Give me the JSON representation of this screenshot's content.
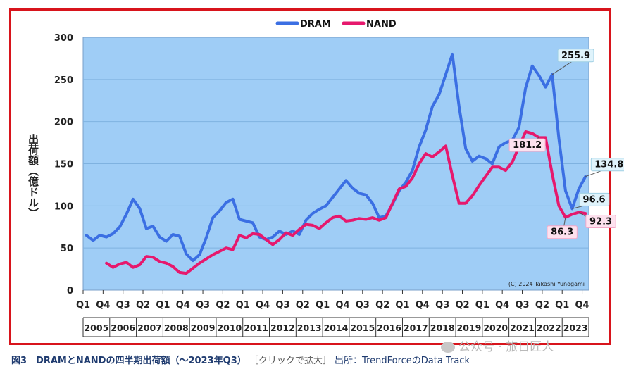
{
  "chart_data": {
    "type": "line",
    "title": "",
    "ylabel": "出荷額（億ドル）",
    "ylim": [
      0,
      300
    ],
    "yticks": [
      0,
      50,
      100,
      150,
      200,
      250,
      300
    ],
    "grid": true,
    "legend_position": "top-center",
    "x_tick_labels": [
      "Q1",
      "Q4",
      "Q3",
      "Q2",
      "Q1",
      "Q4",
      "Q3",
      "Q2",
      "Q1",
      "Q4",
      "Q3",
      "Q2",
      "Q1",
      "Q4",
      "Q3",
      "Q2",
      "Q1",
      "Q4",
      "Q3",
      "Q2",
      "Q1",
      "Q4",
      "Q3",
      "Q2",
      "Q1",
      "Q4"
    ],
    "years": [
      "2005",
      "2006",
      "2007",
      "2008",
      "2009",
      "2010",
      "2011",
      "2012",
      "2013",
      "2014",
      "2015",
      "2016",
      "2017",
      "2018",
      "2019",
      "2020",
      "2021",
      "2022",
      "2023"
    ],
    "series": [
      {
        "name": "DRAM",
        "color": "#3b6fe3",
        "start_quarter": "2005Q1",
        "values": [
          65,
          59,
          65,
          63,
          67,
          75,
          90,
          108,
          97,
          73,
          76,
          63,
          58,
          66,
          64,
          43,
          35,
          42,
          62,
          86,
          94,
          104,
          108,
          84,
          82,
          80,
          63,
          60,
          63,
          70,
          66,
          70,
          66,
          83,
          91,
          96,
          100,
          110,
          120,
          130,
          121,
          115,
          113,
          103,
          86,
          88,
          102,
          118,
          128,
          142,
          170,
          190,
          218,
          232,
          256,
          280,
          218,
          168,
          153,
          159,
          156,
          150,
          170,
          175,
          178,
          193,
          240,
          266,
          255,
          241,
          255.9,
          180,
          118,
          96.6,
          120,
          134.8
        ]
      },
      {
        "name": "NAND",
        "color": "#e6186d",
        "start_quarter": "2005Q4",
        "values": [
          32,
          27,
          31,
          33,
          27,
          30,
          40,
          39,
          34,
          32,
          28,
          21,
          20,
          26,
          32,
          37,
          42,
          46,
          50,
          48,
          65,
          62,
          67,
          66,
          60,
          54,
          60,
          68,
          65,
          72,
          78,
          77,
          73,
          80,
          86,
          88,
          82,
          83,
          85,
          84,
          86,
          83,
          86,
          103,
          120,
          123,
          133,
          150,
          162,
          158,
          164,
          171,
          136,
          103,
          103,
          112,
          124,
          135,
          146,
          146,
          142,
          152,
          170,
          188,
          186,
          181.2,
          181,
          138,
          100,
          86.3,
          90,
          92.3,
          91
        ]
      }
    ],
    "data_labels": [
      {
        "series": "DRAM",
        "text": "255.9"
      },
      {
        "series": "NAND",
        "text": "181.2"
      },
      {
        "series": "DRAM",
        "text": "134.8"
      },
      {
        "series": "DRAM",
        "text": "96.6"
      },
      {
        "series": "NAND",
        "text": "86.3"
      },
      {
        "series": "NAND",
        "text": "92.3"
      }
    ],
    "annotations": [
      "(C) 2024 Takashi Yunogami"
    ]
  },
  "caption": {
    "title": "図3　DRAMとNANDの四半期出荷額（～2023年Q3）",
    "link": "［クリックで拡大］",
    "source": "出所：TrendForceのData Track"
  },
  "watermark": "公众号 · 旅日匠人",
  "colors": {
    "frame": "#d8141c",
    "plot_background": "#9fcdf6",
    "dram": "#3b6fe3",
    "nand": "#e6186d"
  }
}
